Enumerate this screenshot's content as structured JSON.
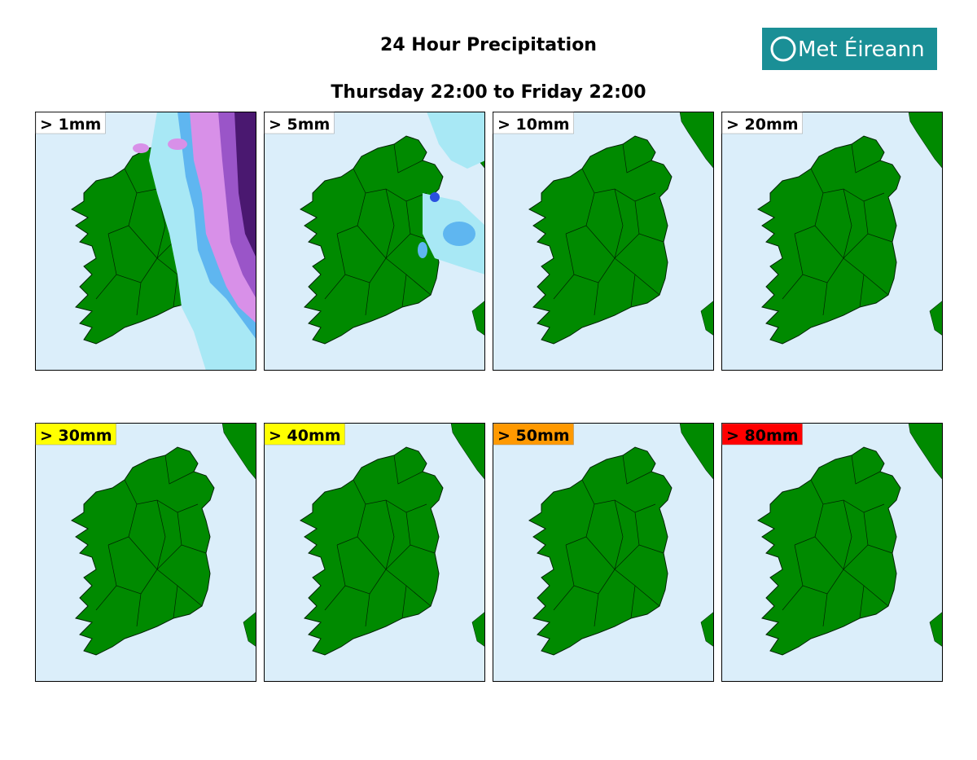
{
  "header": {
    "title": "24 Hour Precipitation",
    "subtitle": "Thursday 22:00 to Friday 22:00",
    "logo": "Met Éireann"
  },
  "panels": [
    {
      "label": "> 1mm",
      "label_color": "#ffffff"
    },
    {
      "label": "> 5mm",
      "label_color": "#ffffff"
    },
    {
      "label": "> 10mm",
      "label_color": "#ffffff"
    },
    {
      "label": "> 20mm",
      "label_color": "#ffffff"
    },
    {
      "label": "> 30mm",
      "label_color": "#ffff00"
    },
    {
      "label": "> 40mm",
      "label_color": "#ffff00"
    },
    {
      "label": "> 50mm",
      "label_color": "#ff9900"
    },
    {
      "label": "> 80mm",
      "label_color": "#ff0000"
    }
  ]
}
